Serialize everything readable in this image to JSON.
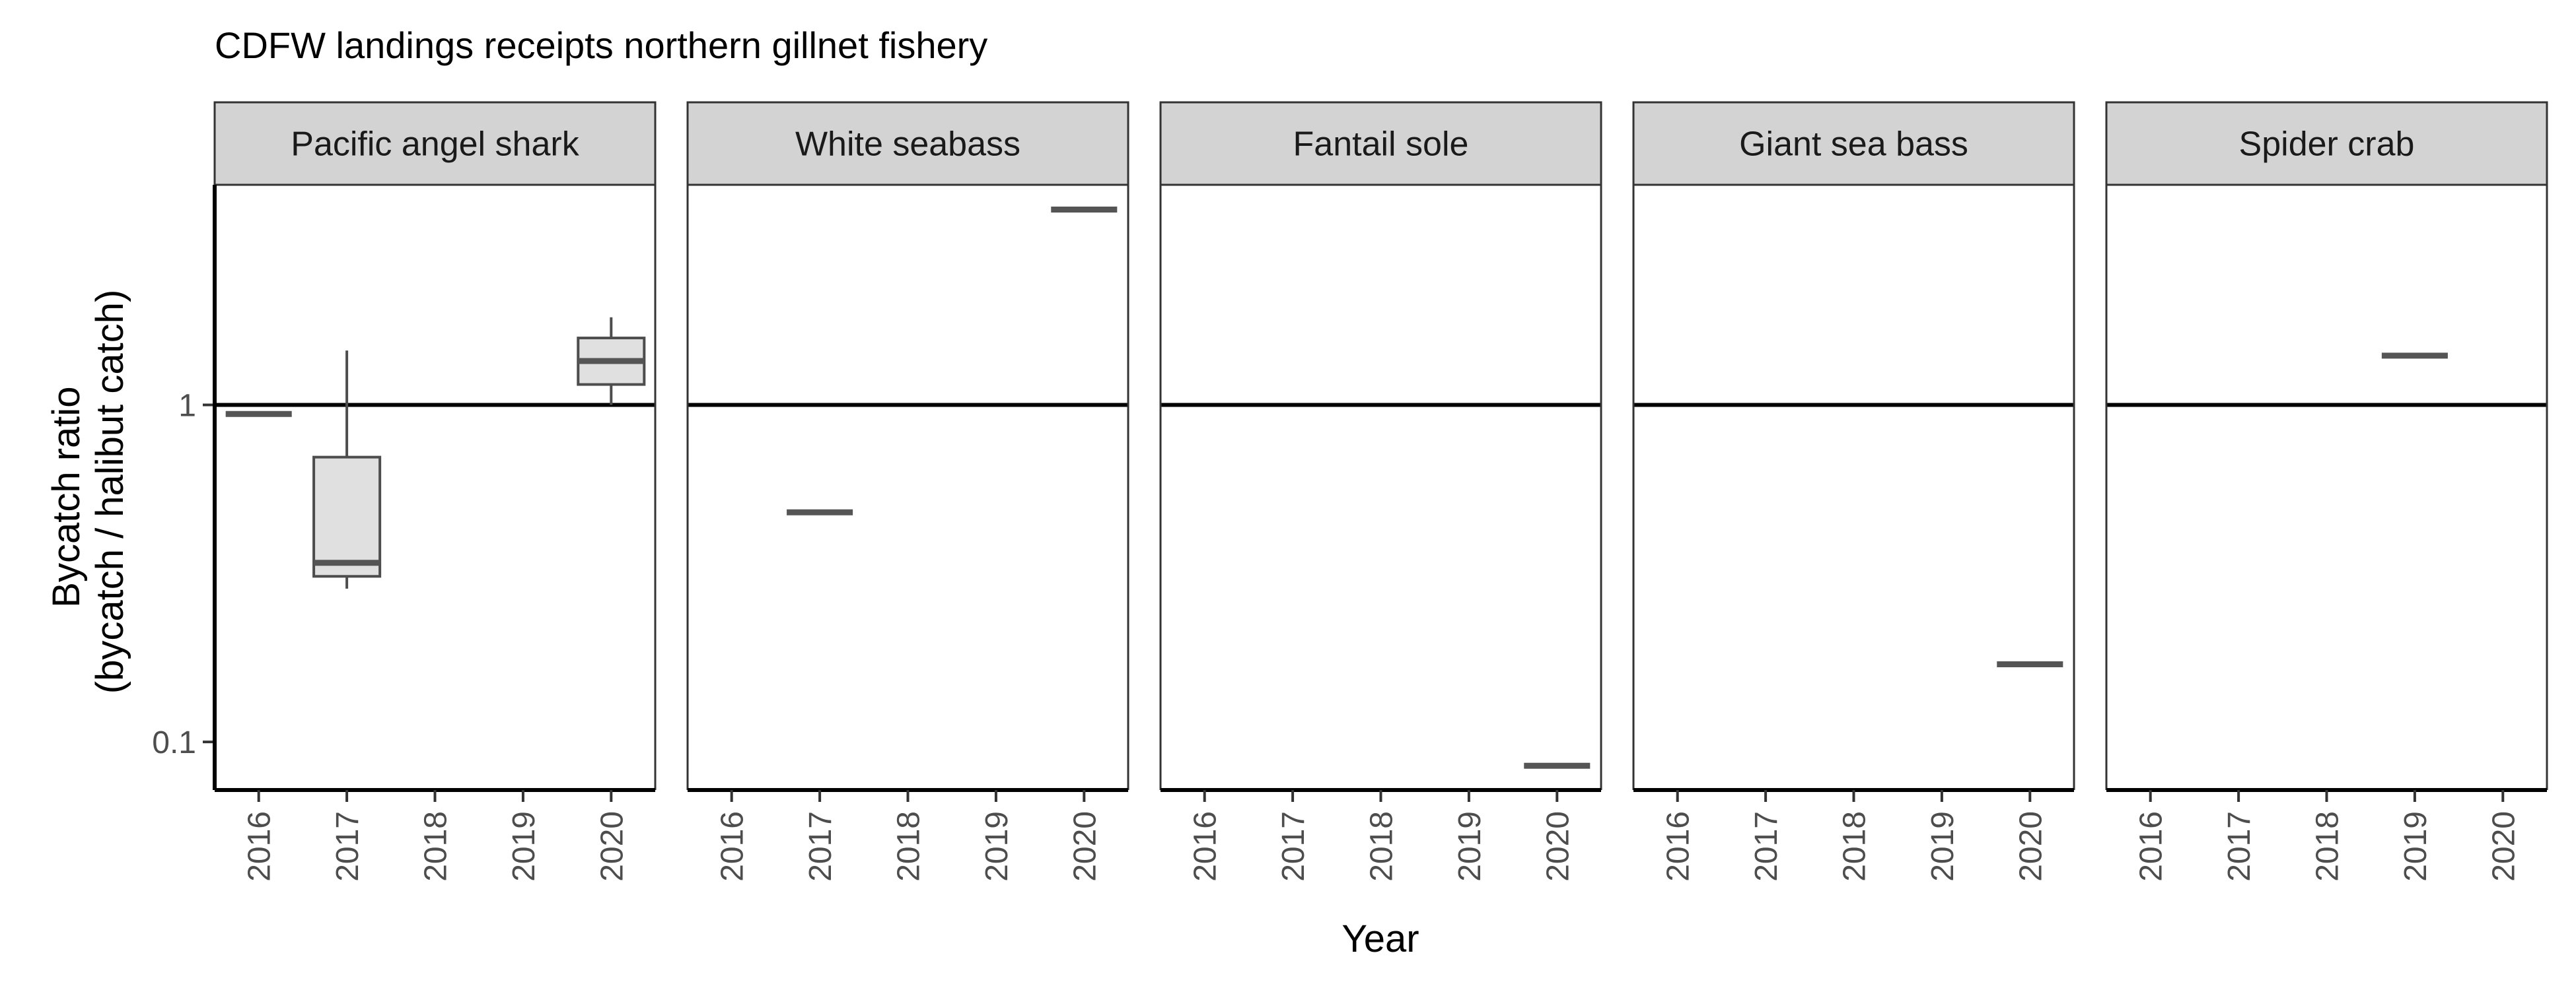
{
  "chart_data": {
    "type": "boxplot",
    "title": "CDFW landings receipts northern gillnet fishery",
    "xlabel": "Year",
    "ylabel_lines": [
      "Bycatch ratio",
      "(bycatch / halibut catch)"
    ],
    "y_scale": "log10",
    "ylim": [
      0.072,
      4.5
    ],
    "y_ticks": [
      0.1,
      1
    ],
    "y_tick_labels": [
      "0.1",
      "1"
    ],
    "reference_line_y": 1,
    "categories": [
      "2016",
      "2017",
      "2018",
      "2019",
      "2020"
    ],
    "panels": [
      {
        "name": "Pacific angel shark",
        "boxes": [
          {
            "x": "2016",
            "min": 0.94,
            "q1": 0.94,
            "median": 0.94,
            "q3": 0.94,
            "max": 0.94
          },
          {
            "x": "2017",
            "min": 0.285,
            "q1": 0.31,
            "median": 0.34,
            "q3": 0.7,
            "max": 1.45
          },
          {
            "x": "2020",
            "min": 1.0,
            "q1": 1.15,
            "median": 1.35,
            "q3": 1.58,
            "max": 1.82
          }
        ]
      },
      {
        "name": "White seabass",
        "boxes": [
          {
            "x": "2017",
            "min": 0.48,
            "q1": 0.48,
            "median": 0.48,
            "q3": 0.48,
            "max": 0.48
          },
          {
            "x": "2020",
            "min": 3.8,
            "q1": 3.8,
            "median": 3.8,
            "q3": 3.8,
            "max": 3.8
          }
        ]
      },
      {
        "name": "Fantail sole",
        "boxes": [
          {
            "x": "2020",
            "min": 0.085,
            "q1": 0.085,
            "median": 0.085,
            "q3": 0.085,
            "max": 0.085
          }
        ]
      },
      {
        "name": "Giant sea bass",
        "boxes": [
          {
            "x": "2020",
            "min": 0.17,
            "q1": 0.17,
            "median": 0.17,
            "q3": 0.17,
            "max": 0.17
          }
        ]
      },
      {
        "name": "Spider crab",
        "boxes": [
          {
            "x": "2019",
            "min": 1.4,
            "q1": 1.4,
            "median": 1.4,
            "q3": 1.4,
            "max": 1.4
          }
        ]
      }
    ],
    "colors": {
      "box_fill": "#e0e0e0",
      "box_line": "#4d4d4d",
      "median": "#555555",
      "strip_fill": "#d3d3d3",
      "frame": "#333333",
      "reference_line": "#000000"
    }
  }
}
